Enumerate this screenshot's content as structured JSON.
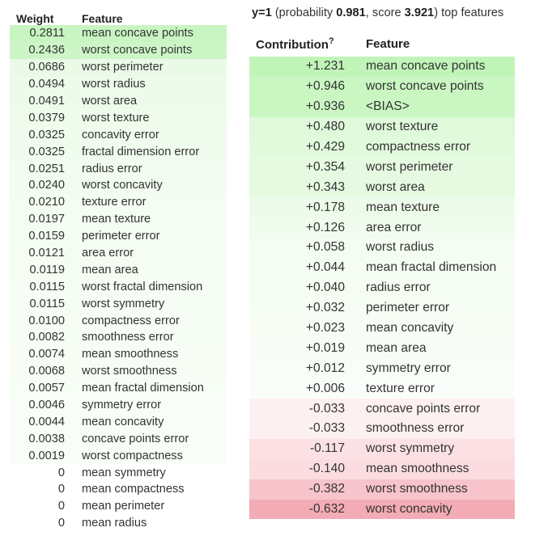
{
  "weights_table": {
    "header_weight": "Weight",
    "header_feature": "Feature",
    "rows": [
      {
        "weight": "0.2811",
        "feature": "mean concave points",
        "bg": "#c8f5c1"
      },
      {
        "weight": "0.2436",
        "feature": "worst concave points",
        "bg": "#cdf6c7"
      },
      {
        "weight": "0.0686",
        "feature": "worst perimeter",
        "bg": "#e9fae6"
      },
      {
        "weight": "0.0494",
        "feature": "worst radius",
        "bg": "#edfbea"
      },
      {
        "weight": "0.0491",
        "feature": "worst area",
        "bg": "#edfbea"
      },
      {
        "weight": "0.0379",
        "feature": "worst texture",
        "bg": "#effcec"
      },
      {
        "weight": "0.0325",
        "feature": "concavity error",
        "bg": "#f0fcee"
      },
      {
        "weight": "0.0325",
        "feature": "fractal dimension error",
        "bg": "#f0fcee"
      },
      {
        "weight": "0.0251",
        "feature": "radius error",
        "bg": "#f2fcf0"
      },
      {
        "weight": "0.0240",
        "feature": "worst concavity",
        "bg": "#f2fcf0"
      },
      {
        "weight": "0.0210",
        "feature": "texture error",
        "bg": "#f3fdf1"
      },
      {
        "weight": "0.0197",
        "feature": "mean texture",
        "bg": "#f3fdf1"
      },
      {
        "weight": "0.0159",
        "feature": "perimeter error",
        "bg": "#f4fdf2"
      },
      {
        "weight": "0.0121",
        "feature": "area error",
        "bg": "#f5fdf3"
      },
      {
        "weight": "0.0119",
        "feature": "mean area",
        "bg": "#f5fdf3"
      },
      {
        "weight": "0.0115",
        "feature": "worst fractal dimension",
        "bg": "#f5fdf4"
      },
      {
        "weight": "0.0115",
        "feature": "worst symmetry",
        "bg": "#f5fdf4"
      },
      {
        "weight": "0.0100",
        "feature": "compactness error",
        "bg": "#f6fdf4"
      },
      {
        "weight": "0.0082",
        "feature": "smoothness error",
        "bg": "#f6fdf5"
      },
      {
        "weight": "0.0074",
        "feature": "mean smoothness",
        "bg": "#f7fdf5"
      },
      {
        "weight": "0.0068",
        "feature": "worst smoothness",
        "bg": "#f7fdf5"
      },
      {
        "weight": "0.0057",
        "feature": "mean fractal dimension",
        "bg": "#f7fef6"
      },
      {
        "weight": "0.0046",
        "feature": "symmetry error",
        "bg": "#f8fef7"
      },
      {
        "weight": "0.0044",
        "feature": "mean concavity",
        "bg": "#f8fef7"
      },
      {
        "weight": "0.0038",
        "feature": "concave points error",
        "bg": "#f8fef7"
      },
      {
        "weight": "0.0019",
        "feature": "worst compactness",
        "bg": "#f9fef8"
      },
      {
        "weight": "0",
        "feature": "mean symmetry",
        "bg": "#ffffff"
      },
      {
        "weight": "0",
        "feature": "mean compactness",
        "bg": "#ffffff"
      },
      {
        "weight": "0",
        "feature": "mean perimeter",
        "bg": "#ffffff"
      },
      {
        "weight": "0",
        "feature": "mean radius",
        "bg": "#ffffff"
      }
    ]
  },
  "explanation_title": {
    "y_label": "y=1",
    "open_text": " (probability ",
    "probability": "0.981",
    "mid_text": ", score ",
    "score": "3.921",
    "close_text": ") top features"
  },
  "contrib_table": {
    "header_contribution": "Contribution",
    "header_help": "?",
    "header_feature": "Feature",
    "rows": [
      {
        "contribution": "+1.231",
        "feature": "mean concave points",
        "bg": "#c1f5b8"
      },
      {
        "contribution": "+0.946",
        "feature": "worst concave points",
        "bg": "#c9f6c1"
      },
      {
        "contribution": "+0.936",
        "feature": "<BIAS>",
        "bg": "#caf6c2"
      },
      {
        "contribution": "+0.480",
        "feature": "worst texture",
        "bg": "#dff9da"
      },
      {
        "contribution": "+0.429",
        "feature": "compactness error",
        "bg": "#e1fadc"
      },
      {
        "contribution": "+0.354",
        "feature": "worst perimeter",
        "bg": "#e5fae0"
      },
      {
        "contribution": "+0.343",
        "feature": "worst area",
        "bg": "#e5fae1"
      },
      {
        "contribution": "+0.178",
        "feature": "mean texture",
        "bg": "#edfbea"
      },
      {
        "contribution": "+0.126",
        "feature": "area error",
        "bg": "#f0fced"
      },
      {
        "contribution": "+0.058",
        "feature": "worst radius",
        "bg": "#f4fdf2"
      },
      {
        "contribution": "+0.044",
        "feature": "mean fractal dimension",
        "bg": "#f5fdf3"
      },
      {
        "contribution": "+0.040",
        "feature": "radius error",
        "bg": "#f5fdf3"
      },
      {
        "contribution": "+0.032",
        "feature": "perimeter error",
        "bg": "#f6fdf4"
      },
      {
        "contribution": "+0.023",
        "feature": "mean concavity",
        "bg": "#f7fdf5"
      },
      {
        "contribution": "+0.019",
        "feature": "mean area",
        "bg": "#f7fdf6"
      },
      {
        "contribution": "+0.012",
        "feature": "symmetry error",
        "bg": "#f8fef7"
      },
      {
        "contribution": "+0.006",
        "feature": "texture error",
        "bg": "#fafefa"
      },
      {
        "contribution": "-0.033",
        "feature": "concave points error",
        "bg": "#fdf0f1"
      },
      {
        "contribution": "-0.033",
        "feature": "smoothness error",
        "bg": "#fdf0f1"
      },
      {
        "contribution": "-0.117",
        "feature": "worst symmetry",
        "bg": "#fbe1e4"
      },
      {
        "contribution": "-0.140",
        "feature": "mean smoothness",
        "bg": "#fbdde1"
      },
      {
        "contribution": "-0.382",
        "feature": "worst smoothness",
        "bg": "#f7c4cb"
      },
      {
        "contribution": "-0.632",
        "feature": "worst concavity",
        "bg": "#f3acb5"
      }
    ]
  }
}
